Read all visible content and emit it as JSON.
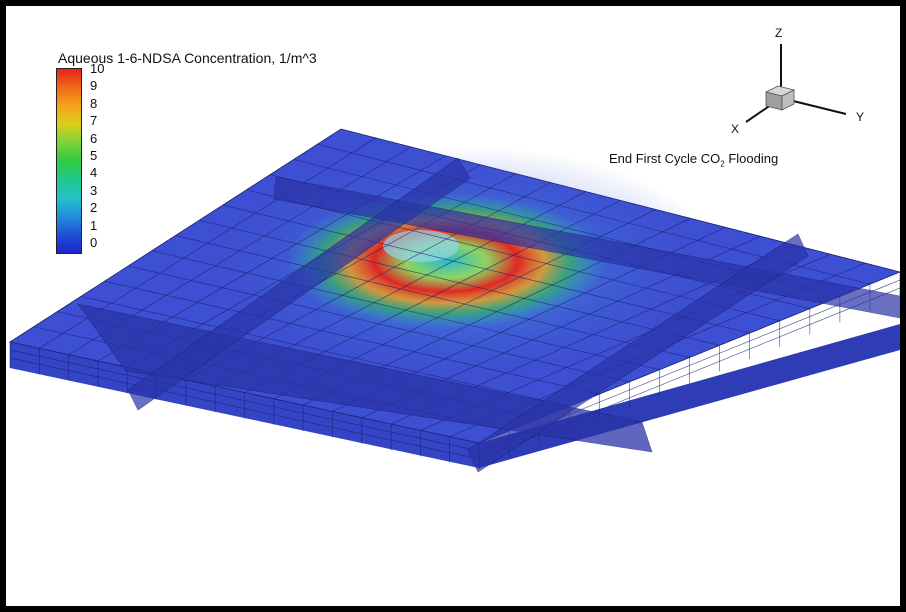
{
  "legend": {
    "title": "Aqueous 1-6-NDSA Concentration, 1/m^3",
    "levels": [
      "10",
      "9",
      "8",
      "7",
      "6",
      "5",
      "4",
      "3",
      "2",
      "1",
      "0"
    ],
    "colors": [
      "#e8231b",
      "#f06a1a",
      "#f5a21a",
      "#d9cf1c",
      "#7ed23a",
      "#2ecc40",
      "#22c78d",
      "#22c2c9",
      "#2290de",
      "#1f4fd6",
      "#1f25c8"
    ]
  },
  "caption": {
    "prefix": "End First Cycle CO",
    "subscript": "2",
    "suffix": " Flooding"
  },
  "axes": {
    "z": "Z",
    "x": "X",
    "y": "Y"
  },
  "colors": {
    "slab": "#3d4fd2",
    "slab_dark": "#2a33a8",
    "edge": "#1a1f70",
    "frame": "#000000"
  }
}
